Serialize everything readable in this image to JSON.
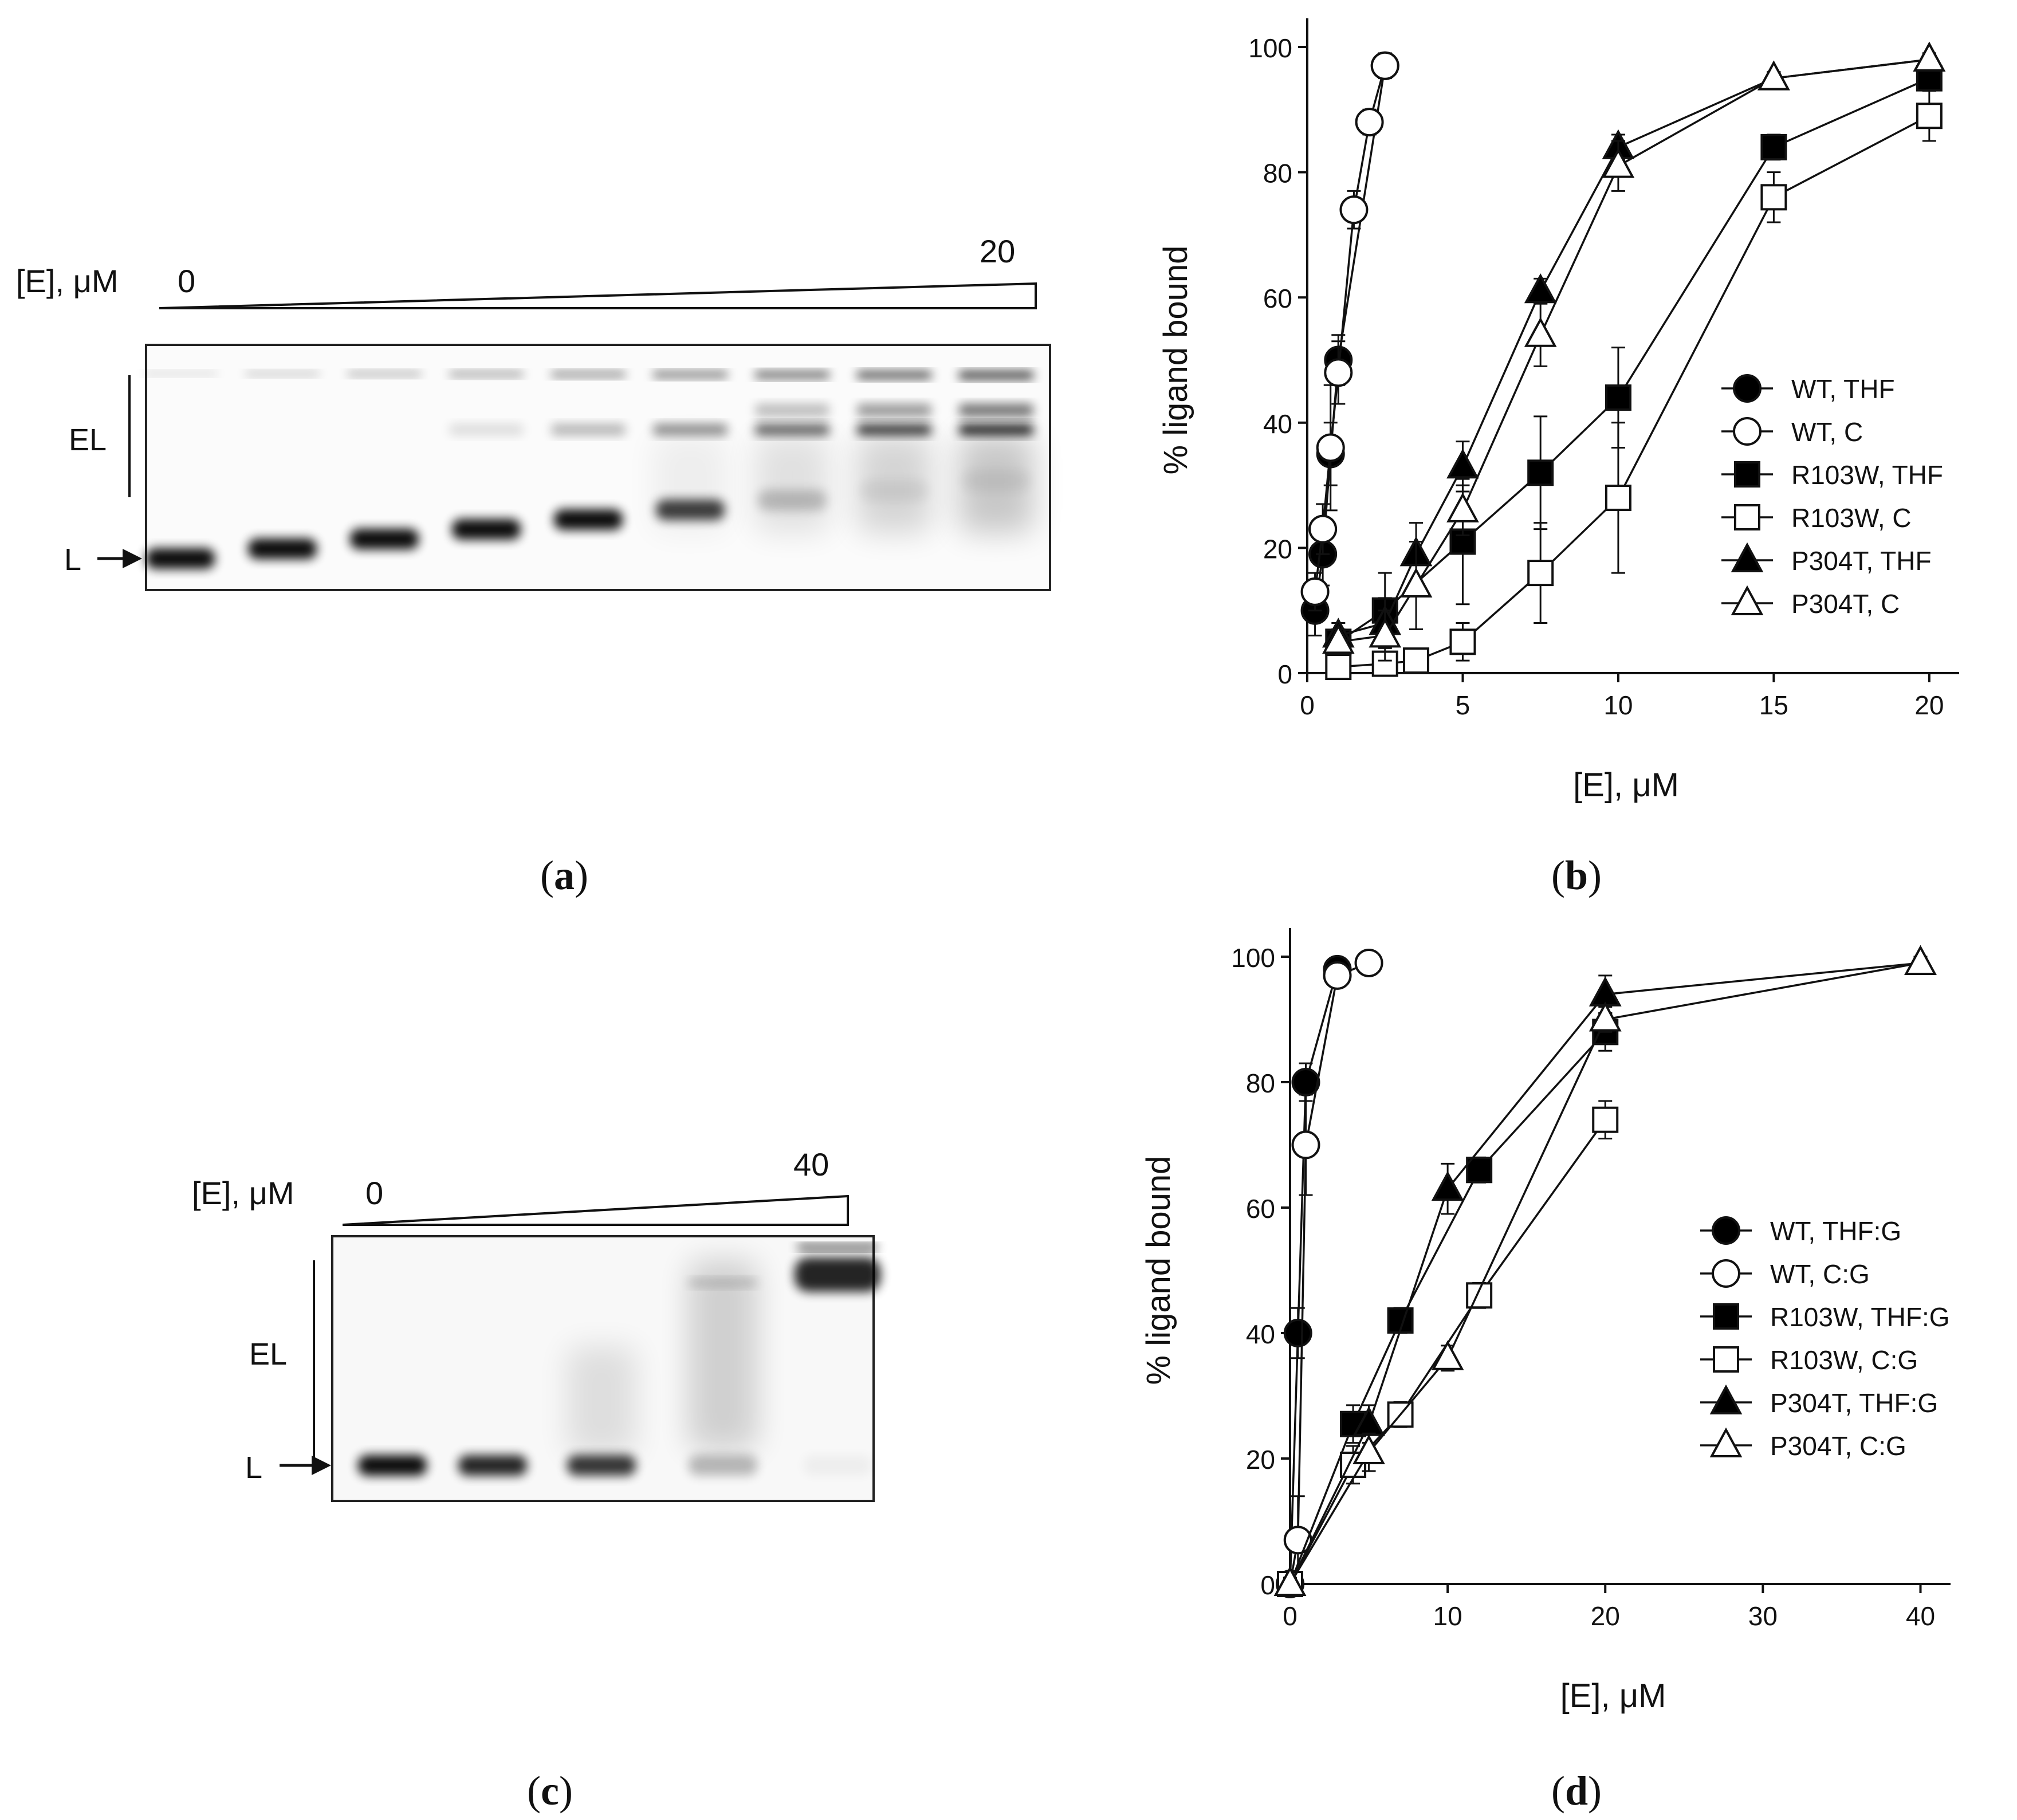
{
  "panels": {
    "a": {
      "label_open": "(",
      "label_letter": "a",
      "label_close": ")",
      "conc_label": "[E], μM",
      "conc_start": "0",
      "conc_end": "20",
      "el_label": "EL",
      "l_label": "L",
      "lane_count": 9
    },
    "b": {
      "label_open": "(",
      "label_letter": "b",
      "label_close": ")"
    },
    "c": {
      "label_open": "(",
      "label_letter": "c",
      "label_close": ")",
      "conc_label": "[E], μM",
      "conc_start": "0",
      "conc_end": "40",
      "el_label": "EL",
      "l_label": "L",
      "lane_count": 5
    },
    "d": {
      "label_open": "(",
      "label_letter": "d",
      "label_close": ")"
    }
  },
  "chart_data": [
    {
      "panel": "b",
      "type": "line",
      "xlabel": "[E], μM",
      "ylabel": "% ligand bound",
      "xlim": [
        0,
        20.5
      ],
      "ylim": [
        0,
        100
      ],
      "xticks": [
        0,
        5,
        10,
        15,
        20
      ],
      "yticks": [
        0,
        20,
        40,
        60,
        80,
        100
      ],
      "grid": false,
      "legend": "center-right",
      "series": [
        {
          "name": "WT, THF",
          "marker": "circle",
          "fill": "#000000",
          "x": [
            0.25,
            0.5,
            0.75,
            1,
            2.5
          ],
          "y": [
            10,
            19,
            35,
            50,
            97
          ],
          "err": [
            4,
            5,
            5,
            4,
            2
          ]
        },
        {
          "name": "WT, C",
          "marker": "circle",
          "fill": "#ffffff",
          "x": [
            0.25,
            0.5,
            0.75,
            1,
            1.5,
            2,
            2.5
          ],
          "y": [
            13,
            23,
            36,
            48,
            74,
            88,
            97
          ],
          "err": [
            3,
            4,
            10,
            5,
            3,
            2,
            1
          ]
        },
        {
          "name": "R103W, THF",
          "marker": "square",
          "fill": "#000000",
          "x": [
            1,
            2.5,
            5,
            7.5,
            10,
            15,
            20
          ],
          "y": [
            5,
            10,
            21,
            32,
            44,
            84,
            95
          ],
          "err": [
            2,
            6,
            10,
            9,
            8,
            2,
            2
          ]
        },
        {
          "name": "R103W, C",
          "marker": "square",
          "fill": "#ffffff",
          "x": [
            1,
            2.5,
            3.5,
            5,
            7.5,
            10,
            15,
            20
          ],
          "y": [
            1,
            1.5,
            2,
            5,
            16,
            28,
            76,
            89
          ],
          "err": [
            1,
            1,
            1,
            3,
            8,
            12,
            4,
            4
          ]
        },
        {
          "name": "P304T, THF",
          "marker": "triangle",
          "fill": "#000000",
          "x": [
            1,
            2.5,
            3.5,
            5,
            7.5,
            10,
            15,
            20
          ],
          "y": [
            6,
            8,
            19,
            33,
            61,
            84,
            95,
            98
          ],
          "err": [
            2,
            4,
            5,
            4,
            2,
            2,
            1,
            1
          ]
        },
        {
          "name": "P304T, C",
          "marker": "triangle",
          "fill": "#ffffff",
          "x": [
            1,
            2.5,
            3.5,
            5,
            7.5,
            10,
            15,
            20
          ],
          "y": [
            5,
            6,
            14,
            26,
            54,
            81,
            95,
            98
          ],
          "err": [
            2,
            4,
            7,
            4,
            5,
            4,
            1,
            1
          ]
        }
      ]
    },
    {
      "panel": "d",
      "type": "line",
      "xlabel": "[E], μM",
      "ylabel": "% ligand bound",
      "xlim": [
        0,
        41
      ],
      "ylim": [
        0,
        100
      ],
      "xticks": [
        0,
        10,
        20,
        30,
        40
      ],
      "yticks": [
        0,
        20,
        40,
        60,
        80,
        100
      ],
      "grid": false,
      "legend": "center-right",
      "series": [
        {
          "name": "WT, THF:G",
          "marker": "circle",
          "fill": "#000000",
          "x": [
            0,
            0.5,
            1,
            3
          ],
          "y": [
            0,
            40,
            80,
            98
          ],
          "err": [
            1,
            4,
            3,
            1
          ]
        },
        {
          "name": "WT, C:G",
          "marker": "circle",
          "fill": "#ffffff",
          "x": [
            0,
            0.5,
            1,
            3,
            5
          ],
          "y": [
            0,
            7,
            70,
            97,
            99
          ],
          "err": [
            1,
            7,
            8,
            1,
            1
          ]
        },
        {
          "name": "R103W, THF:G",
          "marker": "square",
          "fill": "#000000",
          "x": [
            0,
            4,
            7,
            12,
            20
          ],
          "y": [
            0,
            25.5,
            42,
            66,
            88
          ],
          "err": [
            1,
            3,
            2,
            2,
            3
          ]
        },
        {
          "name": "R103W, C:G",
          "marker": "square",
          "fill": "#ffffff",
          "x": [
            0,
            4,
            7,
            12,
            20
          ],
          "y": [
            0,
            19,
            27,
            46,
            74
          ],
          "err": [
            1,
            3,
            2,
            2,
            3
          ]
        },
        {
          "name": "P304T, THF:G",
          "marker": "triangle",
          "fill": "#000000",
          "x": [
            0,
            5,
            10,
            20,
            40
          ],
          "y": [
            0,
            25.5,
            63,
            94,
            99
          ],
          "err": [
            1,
            3,
            4,
            3,
            1
          ]
        },
        {
          "name": "P304T, C:G",
          "marker": "triangle",
          "fill": "#ffffff",
          "x": [
            0,
            5,
            10,
            20,
            40
          ],
          "y": [
            0,
            21,
            36,
            90,
            99
          ],
          "err": [
            1,
            3,
            2,
            2,
            1
          ]
        }
      ]
    }
  ]
}
